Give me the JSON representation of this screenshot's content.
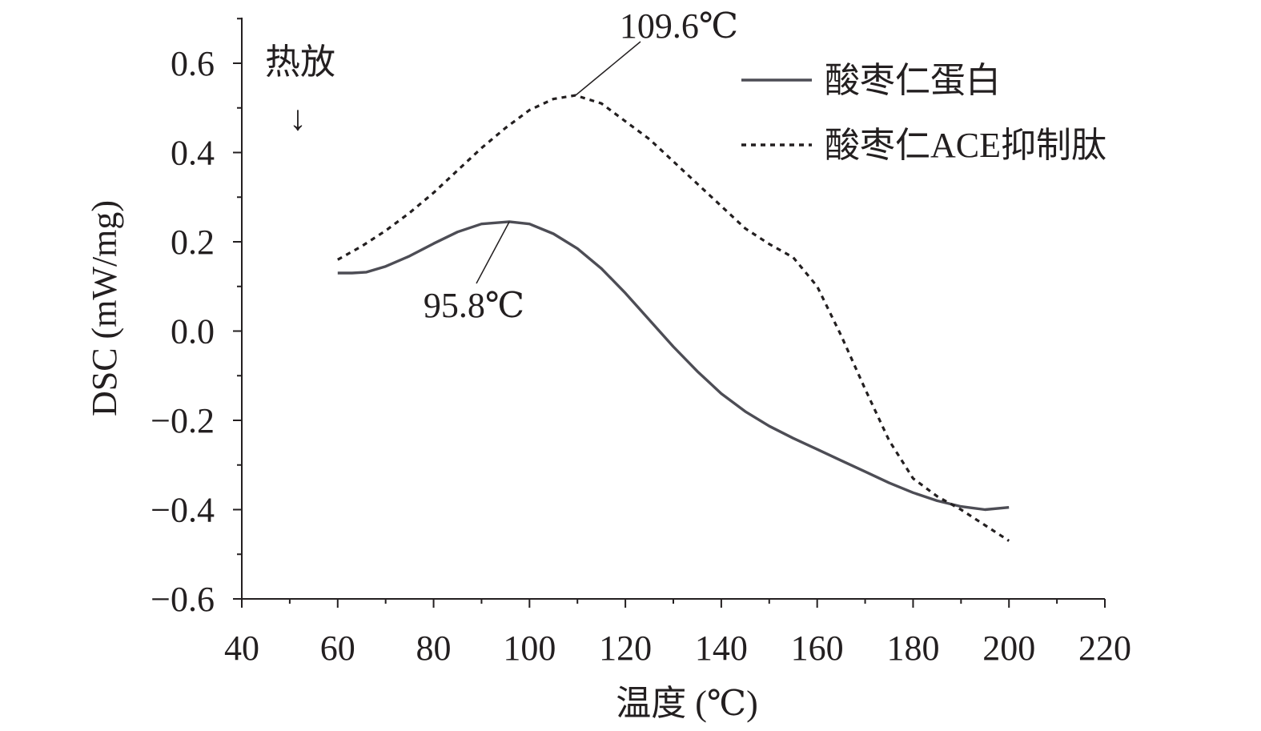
{
  "chart_data": {
    "type": "line",
    "xlabel": "温度 (℃)",
    "ylabel": "DSC (mW/mg)",
    "xlim": [
      40,
      220
    ],
    "ylim": [
      -0.6,
      0.7
    ],
    "x_ticks": [
      40,
      60,
      80,
      100,
      120,
      140,
      160,
      180,
      200,
      220
    ],
    "x_tick_labels": [
      "40",
      "60",
      "80",
      "100",
      "120",
      "140",
      "160",
      "180",
      "200",
      "220"
    ],
    "y_ticks": [
      -0.6,
      -0.4,
      -0.2,
      0.0,
      0.2,
      0.4,
      0.6
    ],
    "y_tick_labels": [
      "−0.6",
      "−0.4",
      "−0.2",
      "0.0",
      "0.2",
      "0.4",
      "0.6"
    ],
    "heat_direction_label": "热放",
    "heat_direction_arrow": "↓",
    "legend_position": "top-right",
    "series": [
      {
        "name": "酸枣仁蛋白",
        "style": "solid",
        "color": "#4d4d55",
        "x": [
          60,
          63,
          66,
          70,
          75,
          80,
          85,
          90,
          95.8,
          100,
          105,
          110,
          115,
          120,
          125,
          130,
          135,
          140,
          145,
          150,
          155,
          160,
          165,
          170,
          175,
          180,
          185,
          190,
          195,
          200
        ],
        "y": [
          0.13,
          0.13,
          0.132,
          0.145,
          0.168,
          0.196,
          0.222,
          0.24,
          0.245,
          0.24,
          0.218,
          0.185,
          0.14,
          0.085,
          0.025,
          -0.035,
          -0.09,
          -0.14,
          -0.18,
          -0.213,
          -0.24,
          -0.265,
          -0.29,
          -0.315,
          -0.34,
          -0.362,
          -0.38,
          -0.393,
          -0.4,
          -0.395
        ]
      },
      {
        "name": "酸枣仁ACE抑制肽",
        "style": "dotted",
        "color": "#231f20",
        "x": [
          60,
          65,
          70,
          75,
          80,
          85,
          90,
          95,
          100,
          105,
          109.6,
          115,
          120,
          125,
          130,
          135,
          140,
          145,
          150,
          155,
          160,
          165,
          170,
          175,
          180,
          185,
          190,
          195,
          200
        ],
        "y": [
          0.16,
          0.19,
          0.225,
          0.265,
          0.31,
          0.36,
          0.41,
          0.455,
          0.495,
          0.52,
          0.528,
          0.51,
          0.47,
          0.43,
          0.38,
          0.33,
          0.28,
          0.23,
          0.195,
          0.165,
          0.1,
          -0.01,
          -0.13,
          -0.245,
          -0.33,
          -0.37,
          -0.4,
          -0.435,
          -0.47
        ]
      }
    ],
    "annotations": [
      {
        "text": "95.8℃",
        "series": 0,
        "x": 95.8,
        "y": 0.245
      },
      {
        "text": "109.6℃",
        "series": 1,
        "x": 109.6,
        "y": 0.528
      }
    ]
  }
}
